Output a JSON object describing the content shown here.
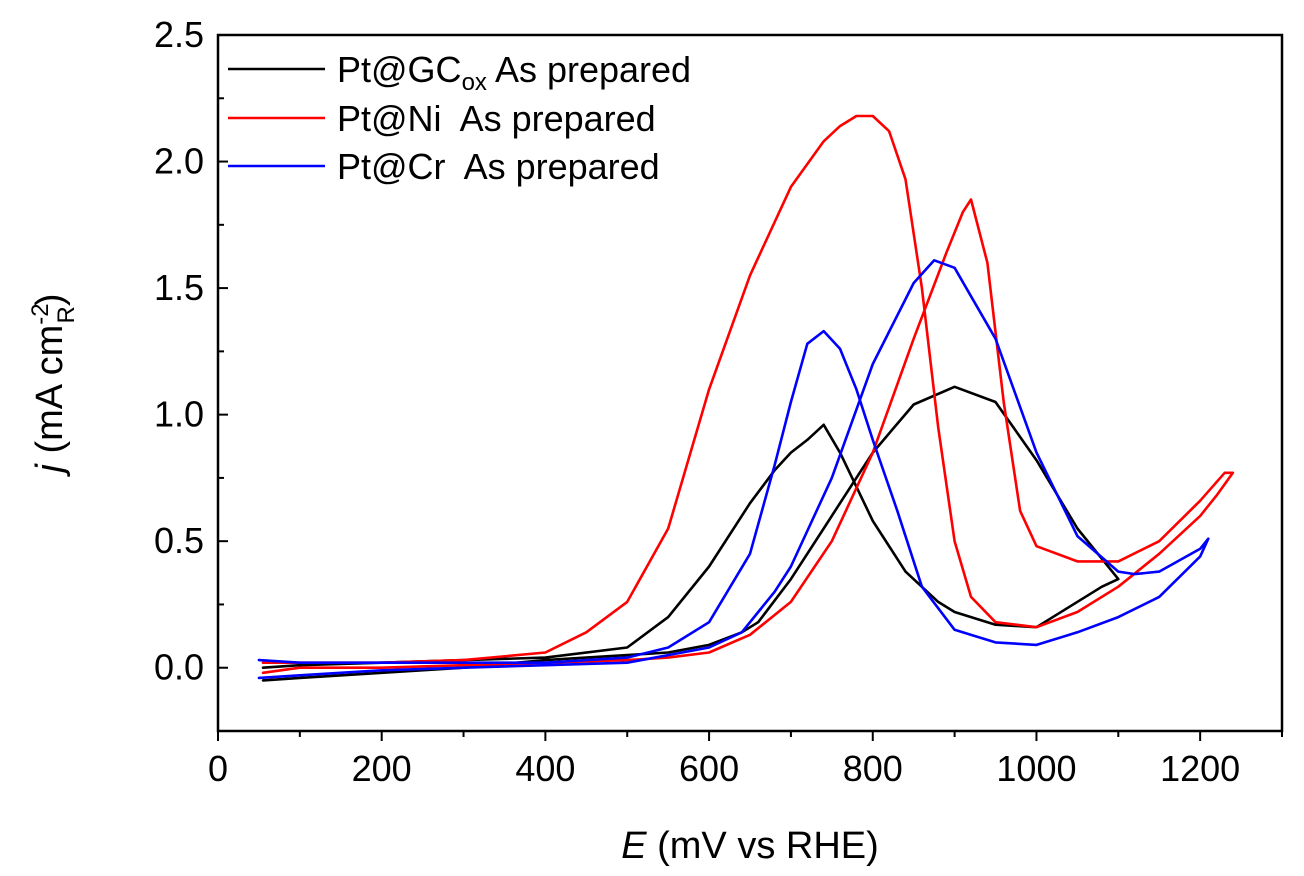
{
  "chart_data": {
    "type": "line",
    "xlabel": {
      "symbol": "E",
      "unit": " (mV vs RHE)"
    },
    "ylabel": {
      "symbol": "j",
      "unit": " (mA cm",
      "unit_sub": "R",
      "unit_sup": "-2",
      "unit_close": ")"
    },
    "xlim": [
      0,
      1300
    ],
    "ylim": [
      -0.25,
      2.5
    ],
    "x_ticks": [
      0,
      200,
      400,
      600,
      800,
      1000,
      1200
    ],
    "x_tick_labels": [
      "0",
      "200",
      "400",
      "600",
      "800",
      "1000",
      "1200"
    ],
    "y_ticks": [
      0.0,
      0.5,
      1.0,
      1.5,
      2.0,
      2.5
    ],
    "y_tick_labels": [
      "0.0",
      "0.5",
      "1.0",
      "1.5",
      "2.0",
      "2.5"
    ],
    "grid": false,
    "legend_position": "top-left",
    "series": [
      {
        "name": "Pt@GCox As prepared",
        "legend": {
          "base": "Pt@GC",
          "sub": "ox",
          "rest": " As prepared"
        },
        "color": "#000000",
        "x": [
          55,
          100,
          200,
          300,
          400,
          500,
          550,
          600,
          640,
          660,
          700,
          740,
          760,
          800,
          850,
          900,
          950,
          1000,
          1050,
          1100,
          1080,
          1000,
          950,
          900,
          880,
          840,
          800,
          760,
          740,
          720,
          700,
          680,
          650,
          600,
          550,
          500,
          400,
          300,
          200,
          100,
          55
        ],
        "y": [
          -0.05,
          -0.04,
          -0.02,
          0.0,
          0.03,
          0.05,
          0.06,
          0.09,
          0.14,
          0.18,
          0.35,
          0.55,
          0.65,
          0.85,
          1.04,
          1.11,
          1.05,
          0.82,
          0.55,
          0.35,
          0.32,
          0.16,
          0.17,
          0.22,
          0.26,
          0.38,
          0.58,
          0.85,
          0.96,
          0.9,
          0.85,
          0.78,
          0.65,
          0.4,
          0.2,
          0.08,
          0.04,
          0.03,
          0.02,
          0.01,
          0.0
        ]
      },
      {
        "name": "Pt@Ni  As prepared",
        "legend": {
          "base": "Pt@Ni",
          "sub": "",
          "rest": "  As prepared"
        },
        "color": "#ff0000",
        "x": [
          55,
          100,
          200,
          300,
          400,
          500,
          550,
          600,
          650,
          700,
          750,
          800,
          850,
          890,
          910,
          920,
          940,
          960,
          980,
          1000,
          1050,
          1100,
          1150,
          1200,
          1230,
          1240,
          1220,
          1200,
          1150,
          1100,
          1050,
          1000,
          950,
          920,
          900,
          880,
          860,
          840,
          820,
          800,
          780,
          760,
          740,
          700,
          650,
          600,
          550,
          500,
          450,
          400,
          300,
          200,
          100,
          55
        ],
        "y": [
          -0.02,
          0.0,
          0.0,
          0.01,
          0.02,
          0.03,
          0.04,
          0.06,
          0.13,
          0.26,
          0.5,
          0.85,
          1.3,
          1.64,
          1.8,
          1.85,
          1.6,
          1.05,
          0.62,
          0.48,
          0.42,
          0.42,
          0.5,
          0.66,
          0.77,
          0.77,
          0.68,
          0.6,
          0.45,
          0.32,
          0.22,
          0.16,
          0.18,
          0.28,
          0.5,
          0.95,
          1.5,
          1.93,
          2.12,
          2.18,
          2.18,
          2.14,
          2.08,
          1.9,
          1.55,
          1.1,
          0.55,
          0.26,
          0.14,
          0.06,
          0.03,
          0.02,
          0.02,
          0.02
        ]
      },
      {
        "name": "Pt@Cr  As prepared",
        "legend": {
          "base": "Pt@Cr",
          "sub": "",
          "rest": "  As prepared"
        },
        "color": "#0000ff",
        "x": [
          50,
          100,
          200,
          300,
          400,
          500,
          550,
          600,
          640,
          680,
          700,
          750,
          800,
          850,
          875,
          900,
          950,
          1000,
          1050,
          1100,
          1120,
          1150,
          1200,
          1210,
          1200,
          1150,
          1100,
          1050,
          1000,
          950,
          900,
          860,
          830,
          800,
          780,
          760,
          740,
          720,
          700,
          680,
          650,
          600,
          550,
          500,
          400,
          300,
          200,
          100,
          50
        ],
        "y": [
          -0.04,
          -0.03,
          -0.01,
          0.0,
          0.01,
          0.02,
          0.05,
          0.08,
          0.14,
          0.3,
          0.4,
          0.75,
          1.2,
          1.52,
          1.61,
          1.58,
          1.3,
          0.85,
          0.52,
          0.38,
          0.37,
          0.38,
          0.47,
          0.51,
          0.44,
          0.28,
          0.2,
          0.14,
          0.09,
          0.1,
          0.15,
          0.32,
          0.62,
          0.9,
          1.1,
          1.26,
          1.33,
          1.28,
          1.05,
          0.8,
          0.45,
          0.18,
          0.08,
          0.04,
          0.02,
          0.02,
          0.02,
          0.02,
          0.03
        ]
      }
    ]
  }
}
